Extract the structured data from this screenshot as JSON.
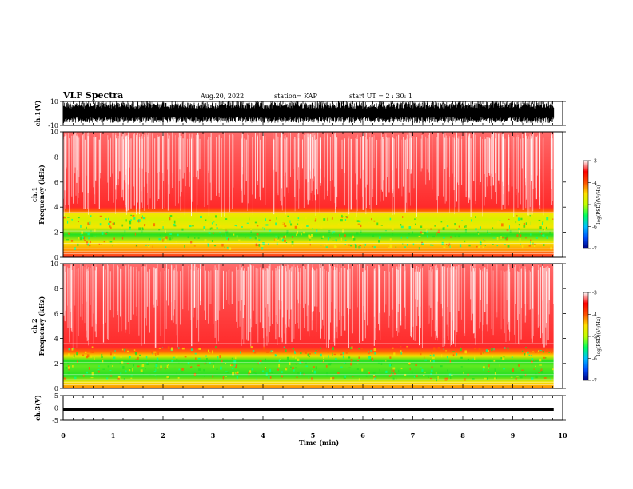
{
  "header": {
    "title": "VLF Spectra",
    "date": "Aug.20, 2022",
    "station": "station= KAP",
    "start": "start  UT =   2 : 30: 1"
  },
  "chart_data": [
    {
      "id": "ch1-waveform",
      "type": "line",
      "ylabel": "ch.1(V)",
      "ylim": [
        -10,
        10
      ],
      "y_ticks": [
        "10",
        "-10"
      ],
      "x_unit": "min",
      "xlim": [
        0,
        10
      ],
      "data_end_min": 9.82,
      "envelope": {
        "upper_typical": 10,
        "lower_typical": -6,
        "baseline_lower_range": [
          -3,
          -8
        ]
      }
    },
    {
      "id": "ch1-spectrogram",
      "type": "heatmap",
      "ylabel": "ch.1\nFrequency (kHz)",
      "ylim": [
        0,
        10
      ],
      "y_ticks": [
        "0",
        "2",
        "4",
        "6",
        "8",
        "10"
      ],
      "xlim": [
        0,
        10
      ],
      "data_end_min": 9.82,
      "bands": [
        {
          "from_khz": 0,
          "to_khz": 0.8,
          "level": "red with white lines"
        },
        {
          "from_khz": 0.8,
          "to_khz": 1.2,
          "level": "orange"
        },
        {
          "from_khz": 1.2,
          "to_khz": 3.6,
          "level": "yellow-green"
        },
        {
          "from_khz": 3.6,
          "to_khz": 10,
          "level": "red-white"
        }
      ],
      "colorbar": {
        "label": "log(PSD)(V²/Hz)",
        "range": [
          -7,
          -3
        ],
        "ticks": [
          "-3",
          "-4",
          "-5",
          "-6",
          "-7"
        ]
      }
    },
    {
      "id": "ch2-spectrogram",
      "type": "heatmap",
      "ylabel": "ch.2\nFrequency (kHz)",
      "ylim": [
        0,
        10
      ],
      "y_ticks": [
        "0",
        "2",
        "4",
        "6",
        "8",
        "10"
      ],
      "xlim": [
        0,
        10
      ],
      "data_end_min": 9.82,
      "bands": [
        {
          "from_khz": 0,
          "to_khz": 0.6,
          "level": "orange-yellow"
        },
        {
          "from_khz": 0.6,
          "to_khz": 2.8,
          "level": "green"
        },
        {
          "from_khz": 2.8,
          "to_khz": 10,
          "level": "red-white"
        }
      ],
      "colorbar": {
        "label": "log(PSD)(V²/Hz)",
        "range": [
          -7,
          -3
        ],
        "ticks": [
          "-3",
          "-4",
          "-5",
          "-6",
          "-7"
        ]
      }
    },
    {
      "id": "ch3-waveform",
      "type": "line",
      "ylabel": "ch.3(V)",
      "ylim": [
        -5,
        5
      ],
      "y_ticks": [
        "5",
        "0",
        "-5"
      ],
      "xlabel": "Time (min)",
      "xlim": [
        0,
        10
      ],
      "x_ticks": [
        "0",
        "1",
        "2",
        "3",
        "4",
        "5",
        "6",
        "7",
        "8",
        "9",
        "10"
      ],
      "data_end_min": 9.82,
      "band": {
        "from_v": -1.2,
        "to_v": 0
      }
    }
  ],
  "colors": {
    "axis": "#000000",
    "spectro_high": "#ff2a2a",
    "spectro_mid": "#f4e600",
    "spectro_low": "#22e022",
    "colorbar_stops": [
      "#000080",
      "#0050ff",
      "#00c0ff",
      "#00ff60",
      "#c0ff00",
      "#ffe000",
      "#ff5000",
      "#ff0000",
      "#ffffff"
    ]
  }
}
